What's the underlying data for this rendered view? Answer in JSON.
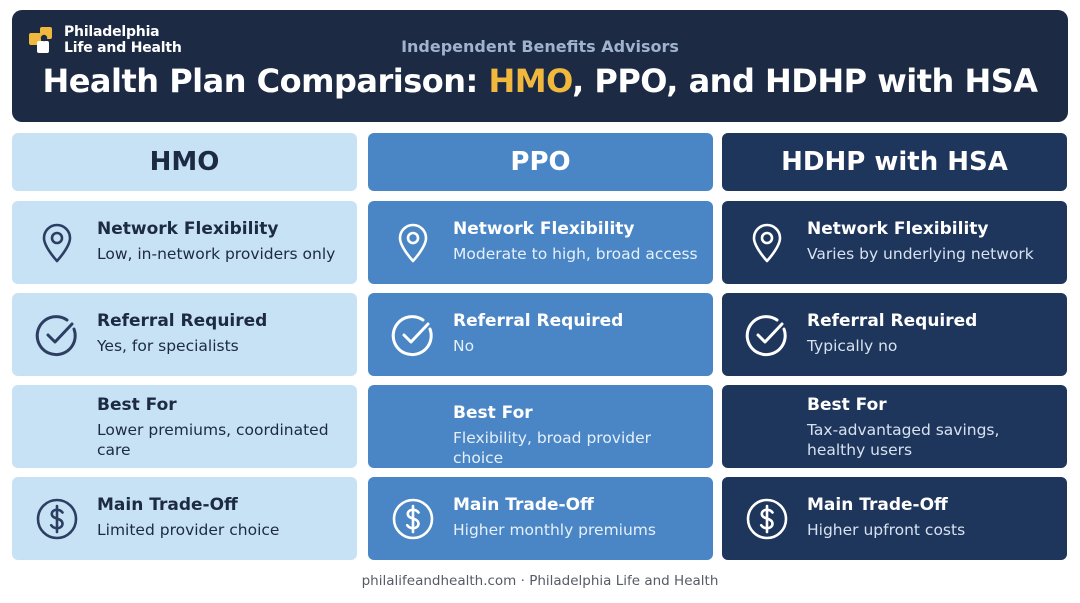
{
  "header": {
    "logo_line1": "Philadelphia",
    "logo_line2": "Life and Health",
    "subtitle": "Independent Benefits Advisors",
    "title_prefix": "Health Plan Comparison: ",
    "title_highlight": "HMO",
    "title_suffix": ", PPO, and HDHP with HSA",
    "highlight_color": "#f0b93e"
  },
  "columns": [
    {
      "name": "HMO",
      "rows": [
        {
          "title": "Network Flexibility",
          "text": "Low, in-network providers only",
          "icon": "location-pin-icon"
        },
        {
          "title": "Referral Required",
          "text": "Yes, for specialists",
          "icon": "check-circle-icon"
        },
        {
          "title": "Best For",
          "text": "Lower premiums, coordinated care"
        },
        {
          "title": "Main Trade-Off",
          "text": "Limited provider choice",
          "icon": "dollar-circle-icon"
        }
      ]
    },
    {
      "name": "PPO",
      "rows": [
        {
          "title": "Network Flexibility",
          "text": "Moderate to high, broad access",
          "icon": "location-pin-icon"
        },
        {
          "title": "Referral Required",
          "text": "No",
          "icon": "check-circle-icon"
        },
        {
          "title": "Best For",
          "text": "Flexibility, broad provider choice"
        },
        {
          "title": "Main Trade-Off",
          "text": "Higher monthly premiums",
          "icon": "dollar-circle-icon"
        }
      ]
    },
    {
      "name": "HDHP with HSA",
      "rows": [
        {
          "title": "Network Flexibility",
          "text": "Varies by underlying network",
          "icon": "location-pin-icon"
        },
        {
          "title": "Referral Required",
          "text": "Typically no",
          "icon": "check-circle-icon"
        },
        {
          "title": "Best For",
          "text": "Tax-advantaged savings, healthy users"
        },
        {
          "title": "Main Trade-Off",
          "text": "Higher upfront costs",
          "icon": "dollar-circle-icon"
        }
      ]
    }
  ],
  "colors": {
    "hmo": "#c8e2f5",
    "ppo": "#4a86c5",
    "hdhp": "#1e355c",
    "header_bg": "#1c2a44"
  },
  "footer": "philalifeandhealth.com · Philadelphia Life and Health"
}
